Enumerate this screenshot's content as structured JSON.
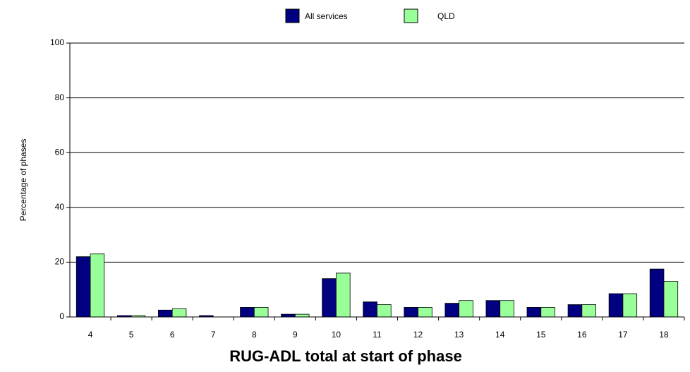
{
  "chart_data": {
    "type": "bar",
    "x_label": "RUG-ADL total at start of phase",
    "y_label": "Percentage of phases",
    "categories": [
      "4",
      "5",
      "6",
      "7",
      "8",
      "9",
      "10",
      "11",
      "12",
      "13",
      "14",
      "15",
      "16",
      "17",
      "18"
    ],
    "series": [
      {
        "name": "All services",
        "color": "#000080",
        "values": [
          22,
          0.5,
          2.5,
          0.5,
          3.5,
          1,
          14,
          5.5,
          3.5,
          5,
          6,
          3.5,
          4.5,
          8.5,
          17.5
        ]
      },
      {
        "name": "QLD",
        "color": "#99ff99",
        "values": [
          23,
          0.5,
          3,
          0,
          3.5,
          1,
          16,
          4.5,
          3.5,
          6,
          6,
          3.5,
          4.5,
          8.5,
          13
        ]
      }
    ],
    "ylim": [
      0,
      100
    ],
    "yticks": [
      0,
      20,
      40,
      60,
      80,
      100
    ],
    "grid": true,
    "legend": "top"
  }
}
